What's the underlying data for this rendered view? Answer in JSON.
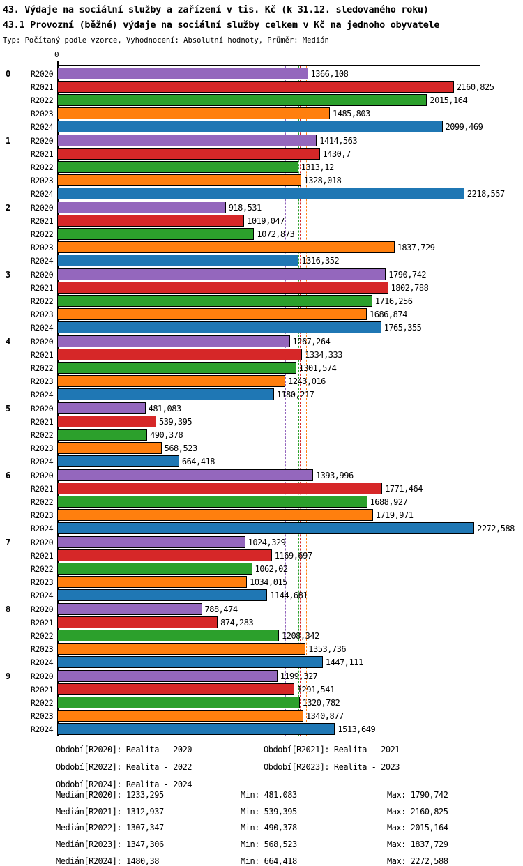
{
  "header": {
    "title": "43. Výdaje na sociální služby a zařízení v tis. Kč (k 31.12. sledovaného roku)",
    "subtitle": "43.1 Provozní (běžné) výdaje na sociální služby celkem v Kč na jednoho obyvatele",
    "meta": "Typ: Počítaný podle vzorce, Vyhodnocení: Absolutní hodnoty, Průměr: Medián"
  },
  "axis": {
    "zero_label": "0"
  },
  "colors": {
    "R2020": "#9467bd",
    "R2021": "#d62728",
    "R2022": "#2ca02c",
    "R2023": "#ff7f0e",
    "R2024": "#1f77b4"
  },
  "chart_data": {
    "type": "bar",
    "orientation": "horizontal",
    "title": "43. Výdaje na sociální služby a zařízení v tis. Kč (k 31.12. sledovaného roku)",
    "subtitle": "43.1 Provozní (běžné) výdaje na sociální služby celkem v Kč na jednoho obyvatele",
    "xlabel": "",
    "ylabel": "",
    "xlim": [
      0,
      2295
    ],
    "grid": false,
    "legend_position": "bottom",
    "series_names": [
      "R2020",
      "R2021",
      "R2022",
      "R2023",
      "R2024"
    ],
    "categories": [
      "0",
      "1",
      "2",
      "3",
      "4",
      "5",
      "6",
      "7",
      "8",
      "9"
    ],
    "groups": [
      {
        "category": "0",
        "bars": [
          {
            "series": "R2020",
            "value": 1366.108,
            "label": "1366,108"
          },
          {
            "series": "R2021",
            "value": 2160.825,
            "label": "2160,825"
          },
          {
            "series": "R2022",
            "value": 2015.164,
            "label": "2015,164"
          },
          {
            "series": "R2023",
            "value": 1485.803,
            "label": "1485,803"
          },
          {
            "series": "R2024",
            "value": 2099.469,
            "label": "2099,469"
          }
        ]
      },
      {
        "category": "1",
        "bars": [
          {
            "series": "R2020",
            "value": 1414.563,
            "label": "1414,563"
          },
          {
            "series": "R2021",
            "value": 1430.7,
            "label": "1430,7"
          },
          {
            "series": "R2022",
            "value": 1313.12,
            "label": "1313,12"
          },
          {
            "series": "R2023",
            "value": 1328.018,
            "label": "1328,018"
          },
          {
            "series": "R2024",
            "value": 2218.557,
            "label": "2218,557"
          }
        ]
      },
      {
        "category": "2",
        "bars": [
          {
            "series": "R2020",
            "value": 918.531,
            "label": "918,531"
          },
          {
            "series": "R2021",
            "value": 1019.047,
            "label": "1019,047"
          },
          {
            "series": "R2022",
            "value": 1072.873,
            "label": "1072,873"
          },
          {
            "series": "R2023",
            "value": 1837.729,
            "label": "1837,729"
          },
          {
            "series": "R2024",
            "value": 1316.352,
            "label": "1316,352"
          }
        ]
      },
      {
        "category": "3",
        "bars": [
          {
            "series": "R2020",
            "value": 1790.742,
            "label": "1790,742"
          },
          {
            "series": "R2021",
            "value": 1802.788,
            "label": "1802,788"
          },
          {
            "series": "R2022",
            "value": 1716.256,
            "label": "1716,256"
          },
          {
            "series": "R2023",
            "value": 1686.874,
            "label": "1686,874"
          },
          {
            "series": "R2024",
            "value": 1765.355,
            "label": "1765,355"
          }
        ]
      },
      {
        "category": "4",
        "bars": [
          {
            "series": "R2020",
            "value": 1267.264,
            "label": "1267,264"
          },
          {
            "series": "R2021",
            "value": 1334.333,
            "label": "1334,333"
          },
          {
            "series": "R2022",
            "value": 1301.574,
            "label": "1301,574"
          },
          {
            "series": "R2023",
            "value": 1243.016,
            "label": "1243,016"
          },
          {
            "series": "R2024",
            "value": 1180.217,
            "label": "1180,217"
          }
        ]
      },
      {
        "category": "5",
        "bars": [
          {
            "series": "R2020",
            "value": 481.083,
            "label": "481,083"
          },
          {
            "series": "R2021",
            "value": 539.395,
            "label": "539,395"
          },
          {
            "series": "R2022",
            "value": 490.378,
            "label": "490,378"
          },
          {
            "series": "R2023",
            "value": 568.523,
            "label": "568,523"
          },
          {
            "series": "R2024",
            "value": 664.418,
            "label": "664,418"
          }
        ]
      },
      {
        "category": "6",
        "bars": [
          {
            "series": "R2020",
            "value": 1393.996,
            "label": "1393,996"
          },
          {
            "series": "R2021",
            "value": 1771.464,
            "label": "1771,464"
          },
          {
            "series": "R2022",
            "value": 1688.927,
            "label": "1688,927"
          },
          {
            "series": "R2023",
            "value": 1719.971,
            "label": "1719,971"
          },
          {
            "series": "R2024",
            "value": 2272.588,
            "label": "2272,588"
          }
        ]
      },
      {
        "category": "7",
        "bars": [
          {
            "series": "R2020",
            "value": 1024.329,
            "label": "1024,329"
          },
          {
            "series": "R2021",
            "value": 1169.697,
            "label": "1169,697"
          },
          {
            "series": "R2022",
            "value": 1062.02,
            "label": "1062,02"
          },
          {
            "series": "R2023",
            "value": 1034.015,
            "label": "1034,015"
          },
          {
            "series": "R2024",
            "value": 1144.681,
            "label": "1144,681"
          }
        ]
      },
      {
        "category": "8",
        "bars": [
          {
            "series": "R2020",
            "value": 788.474,
            "label": "788,474"
          },
          {
            "series": "R2021",
            "value": 874.283,
            "label": "874,283"
          },
          {
            "series": "R2022",
            "value": 1208.342,
            "label": "1208,342"
          },
          {
            "series": "R2023",
            "value": 1353.736,
            "label": "1353,736"
          },
          {
            "series": "R2024",
            "value": 1447.111,
            "label": "1447,111"
          }
        ]
      },
      {
        "category": "9",
        "bars": [
          {
            "series": "R2020",
            "value": 1199.327,
            "label": "1199,327"
          },
          {
            "series": "R2021",
            "value": 1291.541,
            "label": "1291,541"
          },
          {
            "series": "R2022",
            "value": 1320.782,
            "label": "1320,782"
          },
          {
            "series": "R2023",
            "value": 1340.877,
            "label": "1340,877"
          },
          {
            "series": "R2024",
            "value": 1513.649,
            "label": "1513,649"
          }
        ]
      }
    ],
    "median_lines": [
      {
        "series": "R2020",
        "value": 1233.295,
        "label": "1233,295"
      },
      {
        "series": "R2022",
        "value": 1307.347,
        "label": "1307,347"
      },
      {
        "series": "R2021",
        "value": 1312.937,
        "label": "1312,937"
      },
      {
        "series": "R2023",
        "value": 1347.306,
        "label": "1347,306"
      },
      {
        "series": "R2024",
        "value": 1480.38,
        "label": "1480,38"
      }
    ]
  },
  "legend": {
    "period_rows": [
      [
        "Období[R2020]: Realita - 2020",
        "Období[R2021]: Realita - 2021"
      ],
      [
        "Období[R2022]: Realita - 2022",
        "Období[R2023]: Realita - 2023"
      ],
      [
        "Období[R2024]: Realita - 2024"
      ]
    ],
    "stat_rows": [
      {
        "median": "Medián[R2020]: 1233,295",
        "min": "Min: 481,083",
        "max": "Max: 1790,742"
      },
      {
        "median": "Medián[R2021]: 1312,937",
        "min": "Min: 539,395",
        "max": "Max: 2160,825"
      },
      {
        "median": "Medián[R2022]: 1307,347",
        "min": "Min: 490,378",
        "max": "Max: 2015,164"
      },
      {
        "median": "Medián[R2023]: 1347,306",
        "min": "Min: 568,523",
        "max": "Max: 1837,729"
      },
      {
        "median": "Medián[R2024]: 1480,38",
        "min": "Min: 664,418",
        "max": "Max: 2272,588"
      }
    ]
  }
}
